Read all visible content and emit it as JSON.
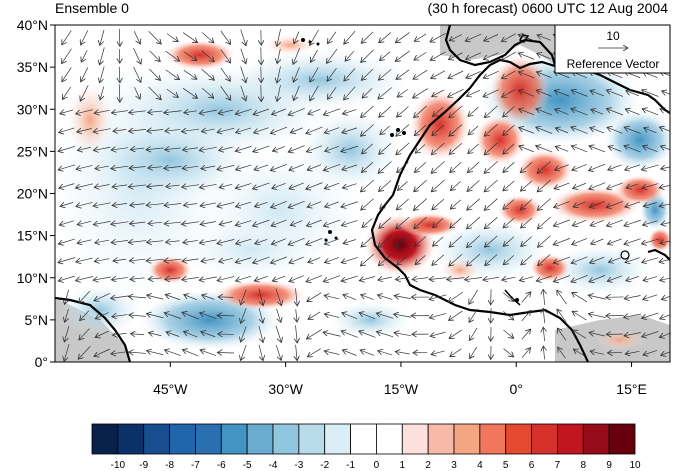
{
  "header": {
    "ensemble_label": "Ensemble 0",
    "forecast_label": "(30 h forecast) 0600 UTC 12 Aug 2004"
  },
  "map": {
    "lon_range": [
      -60,
      20
    ],
    "lat_range": [
      0,
      40
    ],
    "lat_ticks": [
      {
        "value": 40,
        "label": "40°N"
      },
      {
        "value": 35,
        "label": "35°N"
      },
      {
        "value": 30,
        "label": "30°N"
      },
      {
        "value": 25,
        "label": "25°N"
      },
      {
        "value": 20,
        "label": "20°N"
      },
      {
        "value": 15,
        "label": "15°N"
      },
      {
        "value": 10,
        "label": "10°N"
      },
      {
        "value": 5,
        "label": "5°N"
      },
      {
        "value": 0,
        "label": "0°"
      }
    ],
    "lon_ticks": [
      {
        "value": -45,
        "label": "45°W"
      },
      {
        "value": -30,
        "label": "30°W"
      },
      {
        "value": -15,
        "label": "15°W"
      },
      {
        "value": 0,
        "label": "0°"
      },
      {
        "value": 15,
        "label": "15°E"
      }
    ],
    "reference_vector": {
      "magnitude": "10",
      "label": "Reference Vector"
    },
    "colors": {
      "land_mask": "#c8c8c8",
      "coast": "#000000"
    }
  },
  "colorbar": {
    "labels": [
      "-10",
      "-9",
      "-8",
      "-7",
      "-6",
      "-5",
      "-4",
      "-3",
      "-2",
      "-1",
      "0",
      "1",
      "2",
      "3",
      "4",
      "5",
      "6",
      "7",
      "8",
      "9",
      "10"
    ],
    "colors": [
      "#08214a",
      "#0b3169",
      "#174e8f",
      "#2166ac",
      "#2a70b1",
      "#4393c3",
      "#6aacd0",
      "#92c5de",
      "#b8dcea",
      "#d9eef6",
      "#ffffff",
      "#ffffff",
      "#fde0dc",
      "#f7b9a8",
      "#f4a582",
      "#f0775c",
      "#e5492f",
      "#d6312a",
      "#c1151f",
      "#950b18",
      "#67000d"
    ]
  }
}
